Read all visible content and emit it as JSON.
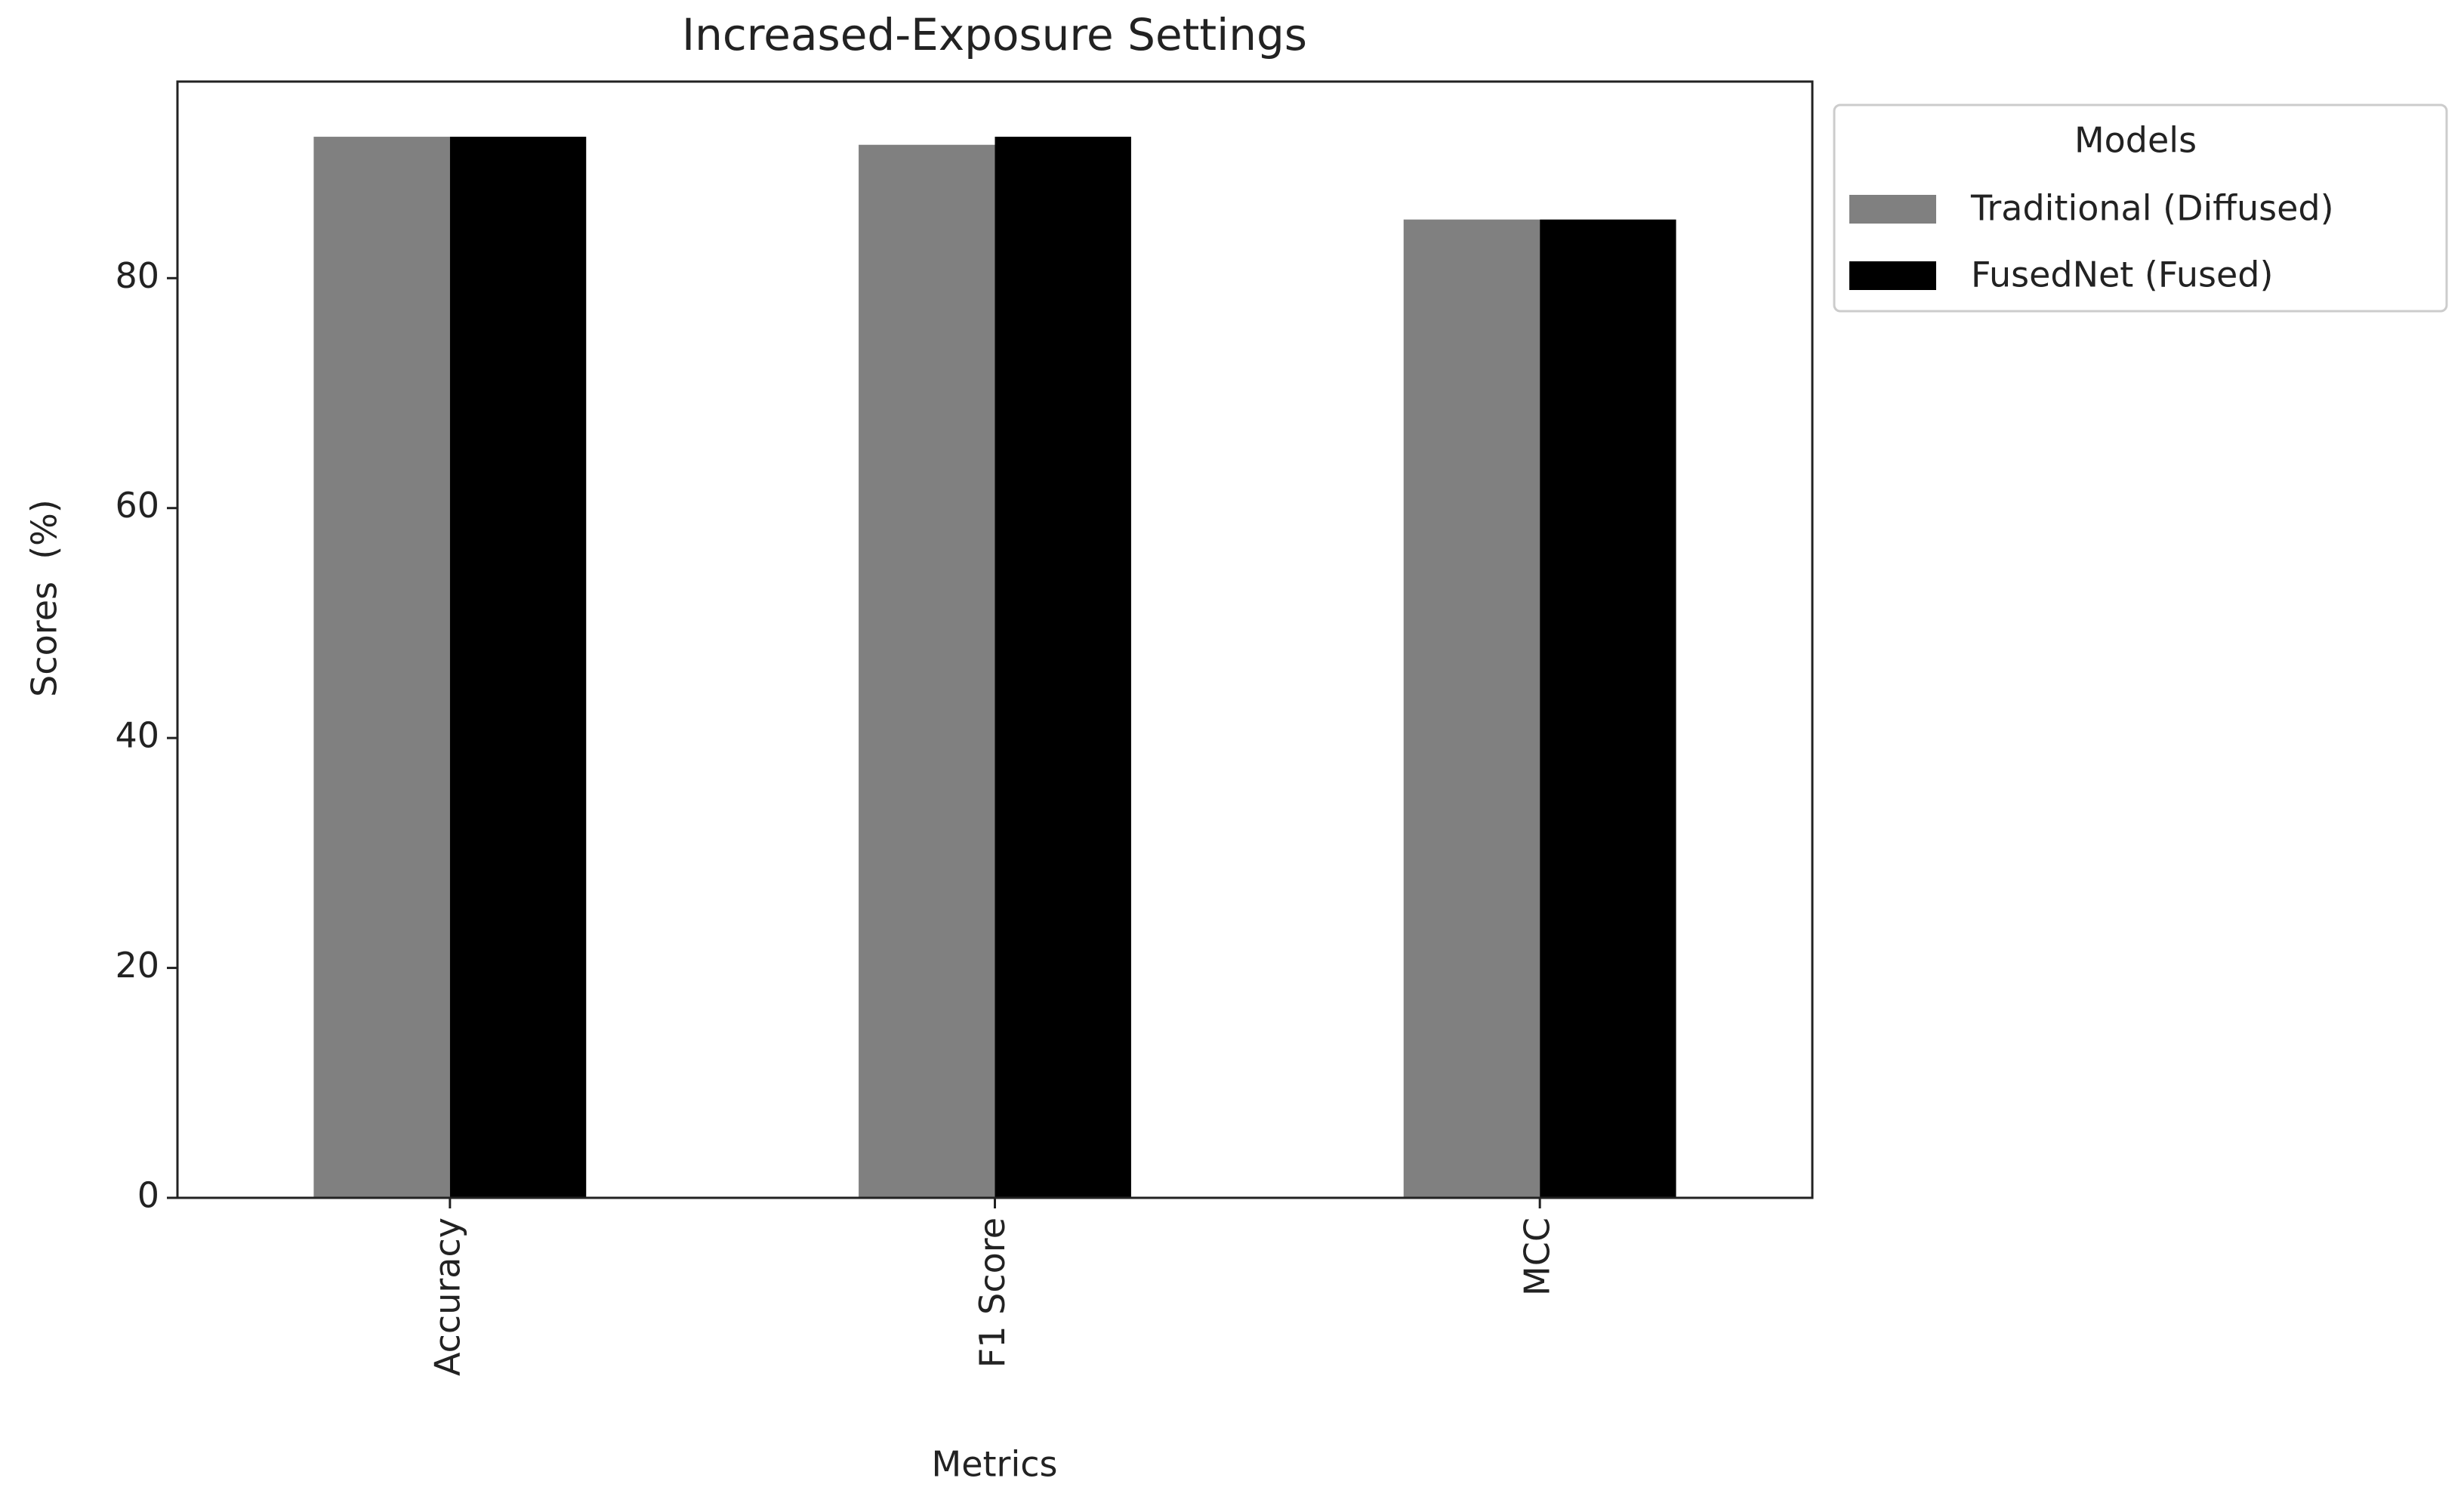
{
  "chart_data": {
    "type": "bar",
    "title": "Increased-Exposure Settings",
    "x_label": "Metrics",
    "y_label": "Scores  (%)",
    "categories": [
      "Accuracy",
      "F1 Score",
      "MCC"
    ],
    "series": [
      {
        "name": "Traditional (Diffused)",
        "color": "#808080",
        "values": [
          92.3,
          91.6,
          85.1
        ]
      },
      {
        "name": "FusedNet (Fused)",
        "color": "#000000",
        "values": [
          92.3,
          92.3,
          85.1
        ]
      }
    ],
    "ylim": [
      0,
      97.1
    ],
    "yticks": [
      0,
      20,
      40,
      60,
      80
    ],
    "grid": false,
    "legend_title": "Models"
  }
}
